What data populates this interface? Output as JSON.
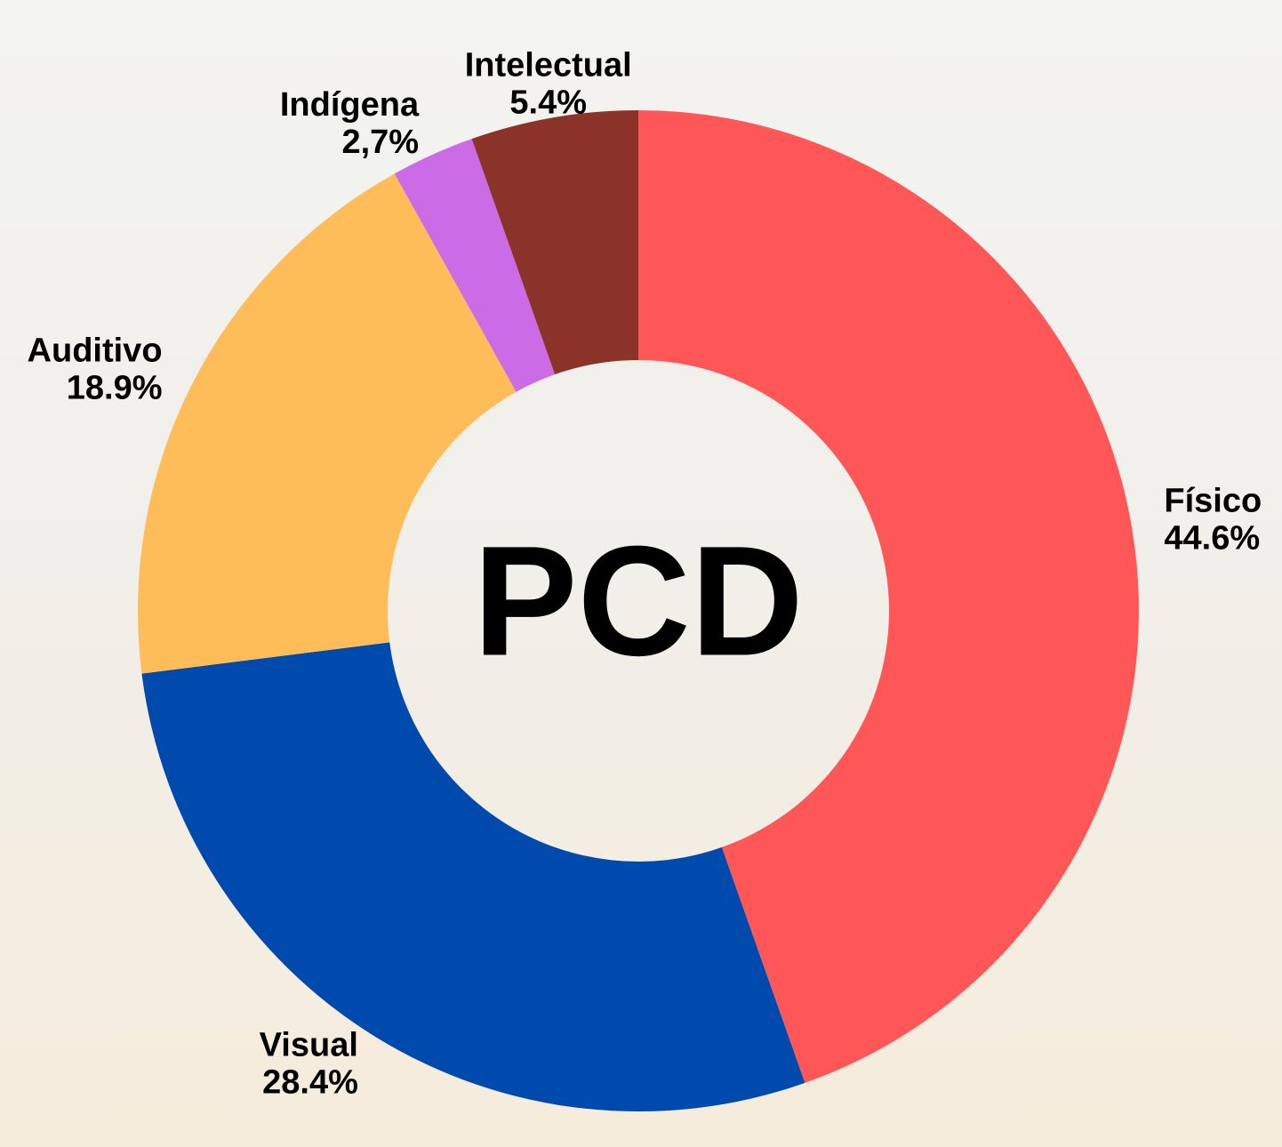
{
  "chart_data": {
    "type": "donut",
    "center_label": "PCD",
    "categories": [
      "Físico",
      "Visual",
      "Auditivo",
      "Indígena",
      "Intelectual"
    ],
    "values": [
      44.6,
      28.4,
      18.9,
      2.7,
      5.4
    ],
    "value_labels": [
      "44.6%",
      "28.4%",
      "18.9%",
      "2,7%",
      "5.4%"
    ],
    "colors": [
      "#ff5757",
      "#004aad",
      "#ffbd59",
      "#cb6ce6",
      "#8c3329"
    ]
  }
}
